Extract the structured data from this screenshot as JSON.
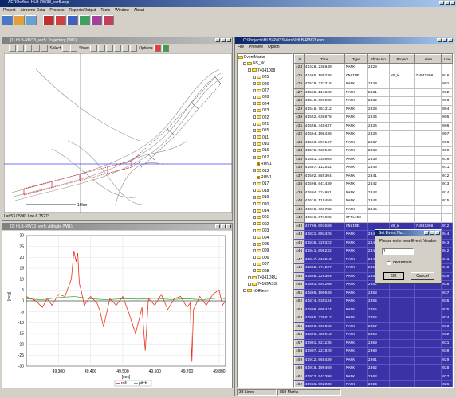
{
  "app": {
    "title": "AEROoffice: HLB-RW33_ver5.aep",
    "menu": [
      "Project",
      "Airborne Data",
      "Process",
      "Reports/Output",
      "Tools",
      "Window",
      "About"
    ]
  },
  "traj_win": {
    "title": "[1] HLB-RW33_ver5: Trajectory (Wt1)",
    "select_label": "Select",
    "show_label": "Show",
    "options_label": "Options",
    "scale_label": "10km",
    "status": "Lat 53.0596°  Lon 6.7527°"
  },
  "alt_win": {
    "title": "[2] HLB-RW33_ver5: Attitude (Wt1)",
    "ylabel": "[deg]",
    "xlabel": "[sec]",
    "legend": [
      "roll",
      "pitch"
    ]
  },
  "events_win": {
    "title": "C:\\Projects\\HLB\\RW33\\Vers5\\HLB-RW33.evm",
    "menu": [
      "File",
      "Preview",
      "Option"
    ],
    "columns": [
      "#",
      "Time",
      "Type",
      "Photo No.",
      "Project",
      "Area",
      "Line",
      "WP"
    ],
    "status": [
      "38 Lines",
      "893 Marks"
    ],
    "rows": [
      {
        "n": "424",
        "time": "41428.238840",
        "type": "MARK",
        "photo": "2329",
        "proj": "",
        "area": "",
        "line": "",
        "sel": false
      },
      {
        "n": "425",
        "time": "41465.199236",
        "type": "ONLINE",
        "photo": "",
        "proj": "NS_W",
        "area": "74041008",
        "line": "016",
        "sel": false
      },
      {
        "n": "426",
        "time": "41529.333316",
        "type": "MARK",
        "photo": "2330",
        "proj": "",
        "area": "",
        "line": "001",
        "sel": false
      },
      {
        "n": "427",
        "time": "41535.111800",
        "type": "MARK",
        "photo": "2331",
        "proj": "",
        "area": "",
        "line": "002",
        "sel": false
      },
      {
        "n": "428",
        "time": "41540.999039",
        "type": "MARK",
        "photo": "2332",
        "proj": "",
        "area": "",
        "line": "003",
        "sel": false
      },
      {
        "n": "429",
        "time": "41546.761312",
        "type": "MARK",
        "photo": "2333",
        "proj": "",
        "area": "",
        "line": "004",
        "sel": false
      },
      {
        "n": "430",
        "time": "41552.638876",
        "type": "MARK",
        "photo": "2334",
        "proj": "",
        "area": "",
        "line": "005",
        "sel": false
      },
      {
        "n": "431",
        "time": "41558.440437",
        "type": "MARK",
        "photo": "2335",
        "proj": "",
        "area": "",
        "line": "006",
        "sel": false
      },
      {
        "n": "432",
        "time": "41564.108436",
        "type": "MARK",
        "photo": "2336",
        "proj": "",
        "area": "",
        "line": "007",
        "sel": false
      },
      {
        "n": "433",
        "time": "41569.897147",
        "type": "MARK",
        "photo": "2337",
        "proj": "",
        "area": "",
        "line": "008",
        "sel": false
      },
      {
        "n": "434",
        "time": "41575.039549",
        "type": "MARK",
        "photo": "2338",
        "proj": "",
        "area": "",
        "line": "009",
        "sel": false
      },
      {
        "n": "435",
        "time": "41581.335605",
        "type": "MARK",
        "photo": "2339",
        "proj": "",
        "area": "",
        "line": "010",
        "sel": false
      },
      {
        "n": "436",
        "time": "41587.112542",
        "type": "MARK",
        "photo": "2340",
        "proj": "",
        "area": "",
        "line": "011",
        "sel": false
      },
      {
        "n": "437",
        "time": "41592.885304",
        "type": "MARK",
        "photo": "2341",
        "proj": "",
        "area": "",
        "line": "012",
        "sel": false
      },
      {
        "n": "438",
        "time": "41598.641430",
        "type": "MARK",
        "photo": "2342",
        "proj": "",
        "area": "",
        "line": "013",
        "sel": false
      },
      {
        "n": "439",
        "time": "41604.324991",
        "type": "MARK",
        "photo": "2343",
        "proj": "",
        "area": "",
        "line": "014",
        "sel": false
      },
      {
        "n": "440",
        "time": "41610.115459",
        "type": "MARK",
        "photo": "2344",
        "proj": "",
        "area": "",
        "line": "015",
        "sel": false
      },
      {
        "n": "441",
        "time": "41615.766782",
        "type": "MARK",
        "photo": "2345",
        "proj": "",
        "area": "",
        "line": "",
        "sel": false
      },
      {
        "n": "442",
        "time": "41616.071695",
        "type": "OFFLINE",
        "photo": "",
        "proj": "",
        "area": "",
        "line": "",
        "sel": false
      },
      {
        "n": "443",
        "time": "41790.093580",
        "type": "ONLINE",
        "photo": "",
        "proj": "NS_W",
        "area": "74041008",
        "line": "012",
        "sel": true
      },
      {
        "n": "444",
        "time": "41831.002425",
        "type": "MARK",
        "photo": "2346",
        "proj": "",
        "area": "",
        "line": "044",
        "sel": true
      },
      {
        "n": "445",
        "time": "41836.329322",
        "type": "MARK",
        "photo": "2347",
        "proj": "",
        "area": "",
        "line": "043",
        "sel": true
      },
      {
        "n": "446",
        "time": "41841.096232",
        "type": "MARK",
        "photo": "2348",
        "proj": "",
        "area": "",
        "line": "042",
        "sel": true
      },
      {
        "n": "447",
        "time": "41847.310219",
        "type": "MARK",
        "photo": "2349",
        "proj": "",
        "area": "",
        "line": "041",
        "sel": true
      },
      {
        "n": "448",
        "time": "41852.774237",
        "type": "MARK",
        "photo": "2350",
        "proj": "",
        "area": "",
        "line": "040",
        "sel": true
      },
      {
        "n": "449",
        "time": "41858.220304",
        "type": "MARK",
        "photo": "2351",
        "proj": "",
        "area": "",
        "line": "039",
        "sel": true
      },
      {
        "n": "450",
        "time": "41863.654260",
        "type": "MARK",
        "photo": "2352",
        "proj": "",
        "area": "",
        "line": "038",
        "sel": true
      },
      {
        "n": "451",
        "time": "41869.109949",
        "type": "MARK",
        "photo": "2353",
        "proj": "",
        "area": "",
        "line": "037",
        "sel": true
      },
      {
        "n": "452",
        "time": "41874.539134",
        "type": "MARK",
        "photo": "2354",
        "proj": "",
        "area": "",
        "line": "036",
        "sel": true
      },
      {
        "n": "453",
        "time": "41880.005474",
        "type": "MARK",
        "photo": "2355",
        "proj": "",
        "area": "",
        "line": "035",
        "sel": true
      },
      {
        "n": "454",
        "time": "41885.335812",
        "type": "MARK",
        "photo": "2356",
        "proj": "",
        "area": "",
        "line": "034",
        "sel": true
      },
      {
        "n": "455",
        "time": "41890.669366",
        "type": "MARK",
        "photo": "2357",
        "proj": "",
        "area": "",
        "line": "033",
        "sel": true
      },
      {
        "n": "456",
        "time": "41896.425913",
        "type": "MARK",
        "photo": "2358",
        "proj": "",
        "area": "",
        "line": "032",
        "sel": true
      },
      {
        "n": "457",
        "time": "41901.521235",
        "type": "MARK",
        "photo": "2359",
        "proj": "",
        "area": "",
        "line": "031",
        "sel": true
      },
      {
        "n": "458",
        "time": "41907.221929",
        "type": "MARK",
        "photo": "2360",
        "proj": "",
        "area": "",
        "line": "030",
        "sel": true
      },
      {
        "n": "459",
        "time": "41912.665439",
        "type": "MARK",
        "photo": "2361",
        "proj": "",
        "area": "",
        "line": "029",
        "sel": true
      },
      {
        "n": "460",
        "time": "41918.109469",
        "type": "MARK",
        "photo": "2362",
        "proj": "",
        "area": "",
        "line": "028",
        "sel": true
      },
      {
        "n": "461",
        "time": "41923.543398",
        "type": "MARK",
        "photo": "2363",
        "proj": "",
        "area": "",
        "line": "027",
        "sel": true
      },
      {
        "n": "462",
        "time": "41928.992039",
        "type": "MARK",
        "photo": "2364",
        "proj": "",
        "area": "",
        "line": "026",
        "sel": true
      },
      {
        "n": "463",
        "time": "41934.442395",
        "type": "MARK",
        "photo": "2365",
        "proj": "",
        "area": "",
        "line": "025",
        "sel": true
      },
      {
        "n": "464",
        "time": "41940.003412",
        "type": "MARK",
        "photo": "2366",
        "proj": "",
        "area": "",
        "line": "024",
        "sel": true
      },
      {
        "n": "465",
        "time": "41945.435653",
        "type": "MARK",
        "photo": "2367",
        "proj": "",
        "area": "",
        "line": "023",
        "sel": true
      }
    ]
  },
  "tree": [
    {
      "label": "EventMarks",
      "depth": 0
    },
    {
      "label": "NS_W",
      "depth": 1
    },
    {
      "label": "74041008",
      "depth": 2
    },
    {
      "label": "025",
      "depth": 3
    },
    {
      "label": "026",
      "depth": 3
    },
    {
      "label": "027",
      "depth": 3
    },
    {
      "label": "028",
      "depth": 3
    },
    {
      "label": "024",
      "depth": 3
    },
    {
      "label": "023",
      "depth": 3
    },
    {
      "label": "022",
      "depth": 3
    },
    {
      "label": "021",
      "depth": 3
    },
    {
      "label": "015",
      "depth": 3
    },
    {
      "label": "011",
      "depth": 3
    },
    {
      "label": "010",
      "depth": 3
    },
    {
      "label": "016",
      "depth": 3
    },
    {
      "label": "012",
      "depth": 3
    },
    {
      "label": "RUN1",
      "depth": 4
    },
    {
      "label": "013",
      "depth": 3
    },
    {
      "label": "RUN1",
      "depth": 4
    },
    {
      "label": "017",
      "depth": 3
    },
    {
      "label": "018",
      "depth": 3
    },
    {
      "label": "019",
      "depth": 3
    },
    {
      "label": "020",
      "depth": 3
    },
    {
      "label": "014",
      "depth": 3
    },
    {
      "label": "001",
      "depth": 3
    },
    {
      "label": "002",
      "depth": 3
    },
    {
      "label": "003",
      "depth": 3
    },
    {
      "label": "004",
      "depth": 3
    },
    {
      "label": "005",
      "depth": 3
    },
    {
      "label": "009",
      "depth": 3
    },
    {
      "label": "006",
      "depth": 3
    },
    {
      "label": "007",
      "depth": 3
    },
    {
      "label": "008",
      "depth": 3
    },
    {
      "label": "74041DRU",
      "depth": 2
    },
    {
      "label": "74189ASS",
      "depth": 2
    },
    {
      "label": "<Offline>",
      "depth": 1
    }
  ],
  "dialog": {
    "title": "Set Event Nu...",
    "prompt": "Please enter new Event Number",
    "value": "1",
    "checkbox": "decrement",
    "ok": "OK",
    "cancel": "Cancel"
  },
  "chart_data": {
    "type": "line",
    "ylabel": "[deg]",
    "xlabel": "[sec]",
    "ylim": [
      -30,
      30
    ],
    "xlim": [
      49200,
      49820
    ],
    "yticks": [
      30,
      25,
      20,
      15,
      10,
      5,
      0,
      -5,
      -10,
      -15,
      -20,
      -25,
      -30
    ],
    "xticks": [
      "49,300",
      "49,400",
      "49,500",
      "49,600",
      "49,700",
      "49,800"
    ],
    "xtick_values": [
      49300,
      49400,
      49500,
      49600,
      49700,
      49800
    ],
    "series": [
      {
        "name": "roll",
        "color": "#e8341c",
        "x": [
          49200,
          49230,
          49250,
          49265,
          49280,
          49300,
          49320,
          49340,
          49348,
          49355,
          49360,
          49365,
          49372,
          49380,
          49400,
          49420,
          49430,
          49440,
          49460,
          49480,
          49500,
          49520,
          49540,
          49560,
          49570,
          49580,
          49600,
          49620,
          49640,
          49660,
          49680,
          49700,
          49710,
          49715,
          49720,
          49740,
          49760,
          49780,
          49800,
          49810,
          49820
        ],
        "y": [
          2,
          0,
          -3,
          1,
          -2,
          3,
          2,
          10,
          23,
          18,
          22,
          8,
          4,
          -2,
          2,
          -1,
          -5,
          -12,
          1,
          -2,
          2,
          -6,
          -15,
          -3,
          -23,
          1,
          -2,
          3,
          -4,
          1,
          2,
          -3,
          -1,
          -28,
          -4,
          2,
          -2,
          3,
          5,
          -2,
          0
        ]
      },
      {
        "name": "pitch",
        "color": "#40b040",
        "x": [
          49200,
          49250,
          49300,
          49350,
          49400,
          49450,
          49500,
          49550,
          49600,
          49650,
          49700,
          49750,
          49800,
          49820
        ],
        "y": [
          1,
          0.5,
          1.5,
          2,
          1,
          0.5,
          1,
          0.8,
          1.2,
          0.6,
          1,
          0.5,
          1.4,
          1
        ]
      }
    ]
  }
}
